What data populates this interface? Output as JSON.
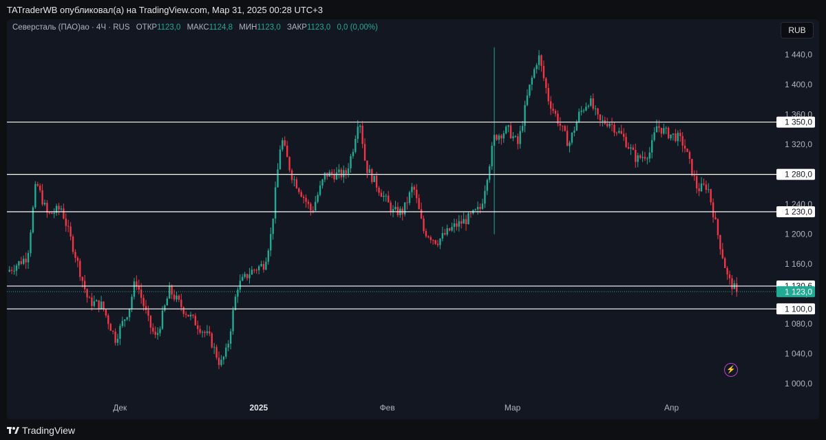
{
  "caption": "TATraderWB опубликовал(а) на TradingView.com, Мар 31, 2025 00:28 UTC+3",
  "legend": {
    "symbol": "Северсталь (ПАО)ао · 4Ч · RUS",
    "open_label": "ОТКР",
    "open": "1123,0",
    "high_label": "МАКС",
    "high": "1124,8",
    "low_label": "МИН",
    "low": "1123,0",
    "close_label": "ЗАКР",
    "close": "1123,0",
    "change": "0,0 (0,00%)"
  },
  "currency": "RUB",
  "footer": {
    "brand": "TradingView"
  },
  "colors": {
    "up": "#22ab94",
    "down": "#f23645",
    "background": "#131722",
    "level": "#ffffff"
  },
  "chart_data": {
    "type": "candlestick",
    "y_ticks": [
      1000,
      1040,
      1080,
      1120,
      1160,
      1200,
      1240,
      1280,
      1320,
      1360,
      1400,
      1440
    ],
    "y_tick_labels": [
      "1 000,0",
      "1 040,0",
      "1 080,0",
      "1 120,0",
      "1 160,0",
      "1 200,0",
      "1 240,0",
      "1 280,0",
      "1 320,0",
      "1 360,0",
      "1 400,0",
      "1 440,0"
    ],
    "ylim": [
      977,
      1460
    ],
    "x_tick_labels": [
      {
        "label": "Дек",
        "t": 0.165,
        "bold": false
      },
      {
        "label": "2025",
        "t": 0.37,
        "bold": true
      },
      {
        "label": "Фев",
        "t": 0.56,
        "bold": false
      },
      {
        "label": "Мар",
        "t": 0.745,
        "bold": false
      },
      {
        "label": "Апр",
        "t": 0.98,
        "bold": false
      }
    ],
    "levels": [
      {
        "value": 1350,
        "label": "1 350,0"
      },
      {
        "value": 1280,
        "label": "1 280,0"
      },
      {
        "value": 1230,
        "label": "1 230,0"
      },
      {
        "value": 1130.6,
        "label": "1 130,6"
      },
      {
        "value": 1100,
        "label": "1 100,0"
      }
    ],
    "last_price": {
      "value": 1123,
      "label": "1 123,0"
    },
    "anchors": [
      [
        0.0,
        1150
      ],
      [
        0.03,
        1170
      ],
      [
        0.043,
        1270
      ],
      [
        0.06,
        1225
      ],
      [
        0.08,
        1235
      ],
      [
        0.1,
        1175
      ],
      [
        0.12,
        1110
      ],
      [
        0.14,
        1105
      ],
      [
        0.16,
        1060
      ],
      [
        0.18,
        1100
      ],
      [
        0.19,
        1140
      ],
      [
        0.21,
        1080
      ],
      [
        0.22,
        1060
      ],
      [
        0.24,
        1125
      ],
      [
        0.26,
        1100
      ],
      [
        0.28,
        1080
      ],
      [
        0.3,
        1060
      ],
      [
        0.315,
        1025
      ],
      [
        0.325,
        1045
      ],
      [
        0.34,
        1130
      ],
      [
        0.36,
        1150
      ],
      [
        0.38,
        1160
      ],
      [
        0.39,
        1200
      ],
      [
        0.405,
        1330
      ],
      [
        0.42,
        1280
      ],
      [
        0.45,
        1230
      ],
      [
        0.47,
        1280
      ],
      [
        0.5,
        1280
      ],
      [
        0.51,
        1310
      ],
      [
        0.52,
        1360
      ],
      [
        0.53,
        1290
      ],
      [
        0.55,
        1260
      ],
      [
        0.57,
        1230
      ],
      [
        0.585,
        1230
      ],
      [
        0.6,
        1265
      ],
      [
        0.615,
        1205
      ],
      [
        0.635,
        1190
      ],
      [
        0.66,
        1210
      ],
      [
        0.68,
        1220
      ],
      [
        0.7,
        1235
      ],
      [
        0.72,
        1330
      ],
      [
        0.74,
        1340
      ],
      [
        0.755,
        1320
      ],
      [
        0.77,
        1390
      ],
      [
        0.785,
        1440
      ],
      [
        0.8,
        1380
      ],
      [
        0.815,
        1350
      ],
      [
        0.83,
        1320
      ],
      [
        0.845,
        1360
      ],
      [
        0.86,
        1380
      ],
      [
        0.875,
        1350
      ],
      [
        0.89,
        1350
      ],
      [
        0.91,
        1330
      ],
      [
        0.93,
        1300
      ],
      [
        0.95,
        1310
      ],
      [
        0.96,
        1345
      ],
      [
        0.975,
        1335
      ],
      [
        0.99,
        1330
      ],
      [
        1.0,
        1320
      ],
      [
        1.02,
        1260
      ],
      [
        1.035,
        1265
      ],
      [
        1.05,
        1200
      ],
      [
        1.065,
        1140
      ],
      [
        1.078,
        1123
      ]
    ]
  }
}
